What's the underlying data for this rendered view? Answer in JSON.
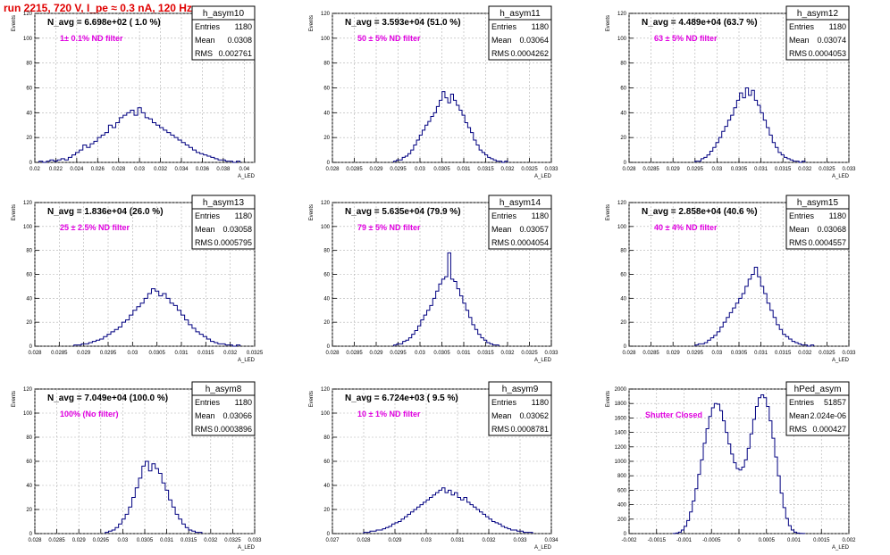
{
  "page_title": "run 2215,   720 V, I_pe ≈ 0.3 nA, 120 Hz",
  "common": {
    "yaxis_label": "Events",
    "xaxis_label": "A_LED"
  },
  "colors": {
    "histogram": "#000080",
    "annotation": "#e000e0",
    "title": "#e00000",
    "grid": "#b0b0b0"
  },
  "chart_data": [
    {
      "type": "histogram",
      "name": "h_asym10",
      "stats": {
        "entries": "1180",
        "mean": "0.0308",
        "rms": "0.002761"
      },
      "navg": "N_avg = 6.698e+02 ( 1.0 %)",
      "note": "1± 0.1% ND filter",
      "xlim": [
        0.02,
        0.041
      ],
      "ylim": [
        0,
        120
      ],
      "xticks": [
        "0.02",
        "0.022",
        "0.024",
        "0.026",
        "0.028",
        "0.03",
        "0.032",
        "0.034",
        "0.036",
        "0.038",
        "0.04"
      ],
      "yticks": [
        "0",
        "20",
        "40",
        "60",
        "80",
        "100",
        "120"
      ],
      "bins": {
        "lo": 0.0204,
        "hi": 0.0396,
        "counts": [
          1,
          0,
          1,
          2,
          1,
          2,
          3,
          2,
          4,
          6,
          8,
          10,
          14,
          12,
          15,
          17,
          20,
          22,
          24,
          30,
          28,
          32,
          36,
          38,
          40,
          42,
          38,
          44,
          40,
          36,
          35,
          32,
          30,
          28,
          26,
          24,
          22,
          20,
          18,
          16,
          14,
          12,
          10,
          8,
          7,
          6,
          5,
          4,
          3,
          2,
          2,
          1,
          1,
          0,
          1
        ]
      }
    },
    {
      "type": "histogram",
      "name": "h_asym11",
      "stats": {
        "entries": "1180",
        "mean": "0.03064",
        "rms": "0.0004262"
      },
      "navg": "N_avg = 3.593e+04 (51.0 %)",
      "note": "50 ± 5% ND filter",
      "xlim": [
        0.028,
        0.033
      ],
      "ylim": [
        0,
        120
      ],
      "xticks": [
        "0.028",
        "0.0285",
        "0.029",
        "0.0295",
        "0.03",
        "0.0305",
        "0.031",
        "0.0315",
        "0.032",
        "0.0325",
        "0.033"
      ],
      "yticks": [
        "0",
        "20",
        "40",
        "60",
        "80",
        "100",
        "120"
      ],
      "bins": {
        "lo": 0.0294,
        "hi": 0.032,
        "counts": [
          1,
          2,
          2,
          4,
          5,
          7,
          10,
          14,
          18,
          22,
          26,
          30,
          33,
          37,
          40,
          45,
          50,
          57,
          52,
          48,
          55,
          50,
          46,
          42,
          38,
          32,
          28,
          24,
          18,
          14,
          10,
          8,
          6,
          4,
          3,
          2,
          1,
          1,
          0,
          1
        ]
      }
    },
    {
      "type": "histogram",
      "name": "h_asym12",
      "stats": {
        "entries": "1180",
        "mean": "0.03074",
        "rms": "0.0004053"
      },
      "navg": "N_avg = 4.489e+04 (63.7 %)",
      "note": "63 ± 5% ND filter",
      "xlim": [
        0.028,
        0.033
      ],
      "ylim": [
        0,
        120
      ],
      "xticks": [
        "0.028",
        "0.0285",
        "0.029",
        "0.0295",
        "0.03",
        "0.0305",
        "0.031",
        "0.0315",
        "0.032",
        "0.0325",
        "0.033"
      ],
      "yticks": [
        "0",
        "20",
        "40",
        "60",
        "80",
        "100",
        "120"
      ],
      "bins": {
        "lo": 0.0295,
        "hi": 0.032,
        "counts": [
          1,
          1,
          3,
          4,
          6,
          9,
          12,
          16,
          20,
          25,
          29,
          34,
          38,
          44,
          50,
          56,
          52,
          60,
          54,
          58,
          50,
          46,
          40,
          34,
          28,
          22,
          16,
          12,
          8,
          6,
          4,
          3,
          2,
          1,
          1,
          0,
          1
        ]
      }
    },
    {
      "type": "histogram",
      "name": "h_asym13",
      "stats": {
        "entries": "1180",
        "mean": "0.03058",
        "rms": "0.0005795"
      },
      "navg": "N_avg = 1.836e+04 (26.0 %)",
      "note": "25 ± 2.5% ND filter",
      "xlim": [
        0.028,
        0.0325
      ],
      "ylim": [
        0,
        120
      ],
      "xticks": [
        "0.028",
        "0.0285",
        "0.029",
        "0.0295",
        "0.03",
        "0.0305",
        "0.031",
        "0.0315",
        "0.032",
        "0.0325"
      ],
      "yticks": [
        "0",
        "20",
        "40",
        "60",
        "80",
        "100",
        "120"
      ],
      "bins": {
        "lo": 0.0288,
        "hi": 0.0322,
        "counts": [
          1,
          1,
          2,
          2,
          3,
          4,
          5,
          6,
          8,
          10,
          12,
          14,
          16,
          20,
          22,
          26,
          30,
          33,
          36,
          40,
          44,
          48,
          46,
          42,
          44,
          40,
          36,
          34,
          30,
          26,
          22,
          18,
          15,
          12,
          10,
          8,
          6,
          4,
          3,
          2,
          2,
          1,
          1,
          0,
          1
        ]
      }
    },
    {
      "type": "histogram",
      "name": "h_asym14",
      "stats": {
        "entries": "1180",
        "mean": "0.03057",
        "rms": "0.0004054"
      },
      "navg": "N_avg = 5.635e+04 (79.9 %)",
      "note": "79 ± 5% ND filter",
      "xlim": [
        0.028,
        0.033
      ],
      "ylim": [
        0,
        120
      ],
      "xticks": [
        "0.028",
        "0.0285",
        "0.029",
        "0.0295",
        "0.03",
        "0.0305",
        "0.031",
        "0.0315",
        "0.032",
        "0.0325",
        "0.033"
      ],
      "yticks": [
        "0",
        "20",
        "40",
        "60",
        "80",
        "100",
        "120"
      ],
      "bins": {
        "lo": 0.0294,
        "hi": 0.0318,
        "counts": [
          1,
          2,
          2,
          4,
          5,
          7,
          10,
          13,
          17,
          22,
          26,
          30,
          34,
          40,
          46,
          52,
          56,
          58,
          78,
          56,
          54,
          48,
          42,
          36,
          30,
          24,
          18,
          14,
          10,
          7,
          5,
          3,
          2,
          1,
          1
        ]
      }
    },
    {
      "type": "histogram",
      "name": "h_asym15",
      "stats": {
        "entries": "1180",
        "mean": "0.03068",
        "rms": "0.0004557"
      },
      "navg": "N_avg = 2.858e+04 (40.6 %)",
      "note": "40 ± 4% ND filter",
      "xlim": [
        0.028,
        0.033
      ],
      "ylim": [
        0,
        120
      ],
      "xticks": [
        "0.028",
        "0.0285",
        "0.029",
        "0.0295",
        "0.03",
        "0.0305",
        "0.031",
        "0.0315",
        "0.032",
        "0.0325",
        "0.033"
      ],
      "yticks": [
        "0",
        "20",
        "40",
        "60",
        "80",
        "100",
        "120"
      ],
      "bins": {
        "lo": 0.0295,
        "hi": 0.0322,
        "counts": [
          1,
          2,
          2,
          3,
          5,
          7,
          9,
          12,
          16,
          20,
          24,
          28,
          32,
          36,
          40,
          44,
          50,
          56,
          60,
          66,
          58,
          50,
          44,
          36,
          30,
          24,
          18,
          14,
          10,
          8,
          6,
          4,
          3,
          2,
          1,
          1,
          0,
          1
        ]
      }
    },
    {
      "type": "histogram",
      "name": "h_asym8",
      "stats": {
        "entries": "1180",
        "mean": "0.03066",
        "rms": "0.0003896"
      },
      "navg": "N_avg = 7.049e+04 (100.0 %)",
      "note": "100% (No filter)",
      "xlim": [
        0.028,
        0.033
      ],
      "ylim": [
        0,
        120
      ],
      "xticks": [
        "0.028",
        "0.0285",
        "0.029",
        "0.0295",
        "0.03",
        "0.0305",
        "0.031",
        "0.0315",
        "0.032",
        "0.0325",
        "0.033"
      ],
      "yticks": [
        "0",
        "20",
        "40",
        "60",
        "80",
        "100",
        "120"
      ],
      "bins": {
        "lo": 0.0296,
        "hi": 0.0318,
        "counts": [
          1,
          2,
          3,
          5,
          8,
          12,
          16,
          22,
          30,
          38,
          46,
          56,
          60,
          52,
          58,
          54,
          50,
          42,
          36,
          28,
          22,
          16,
          12,
          8,
          5,
          3,
          2,
          1,
          1
        ]
      }
    },
    {
      "type": "histogram",
      "name": "h_asym9",
      "stats": {
        "entries": "1180",
        "mean": "0.03062",
        "rms": "0.0008781"
      },
      "navg": "N_avg = 6.724e+03 ( 9.5 %)",
      "note": "10 ± 1% ND filter",
      "xlim": [
        0.027,
        0.034
      ],
      "ylim": [
        0,
        120
      ],
      "xticks": [
        "0.027",
        "0.028",
        "0.029",
        "0.03",
        "0.031",
        "0.032",
        "0.033",
        "0.034"
      ],
      "yticks": [
        "0",
        "20",
        "40",
        "60",
        "80",
        "100",
        "120"
      ],
      "bins": {
        "lo": 0.028,
        "hi": 0.0334,
        "counts": [
          1,
          1,
          2,
          2,
          3,
          3,
          4,
          5,
          6,
          8,
          9,
          10,
          12,
          14,
          16,
          18,
          20,
          22,
          24,
          26,
          28,
          30,
          32,
          34,
          36,
          38,
          34,
          36,
          32,
          34,
          30,
          28,
          30,
          26,
          24,
          22,
          20,
          18,
          16,
          14,
          12,
          10,
          9,
          8,
          6,
          5,
          4,
          3,
          3,
          2,
          2,
          1,
          1,
          1
        ]
      }
    },
    {
      "type": "histogram",
      "name": "hPed_asym",
      "stats": {
        "entries": "51857",
        "mean": "2.024e-06",
        "rms": "0.000427"
      },
      "navg": "",
      "note": "Shutter Closed",
      "xlim": [
        -0.002,
        0.002
      ],
      "ylim": [
        0,
        2000
      ],
      "xticks": [
        "-0.002",
        "-0.0015",
        "-0.001",
        "-0.0005",
        "0",
        "0.0005",
        "0.001",
        "0.0015",
        "0.002"
      ],
      "yticks": [
        "0",
        "200",
        "400",
        "600",
        "800",
        "1000",
        "1200",
        "1400",
        "1600",
        "1800",
        "2000"
      ],
      "bins": {
        "lo": -0.0012,
        "hi": 0.0012,
        "counts": [
          2,
          8,
          20,
          50,
          100,
          180,
          300,
          450,
          620,
          820,
          1020,
          1250,
          1450,
          1620,
          1740,
          1800,
          1790,
          1700,
          1560,
          1400,
          1240,
          1100,
          980,
          900,
          880,
          920,
          1020,
          1180,
          1380,
          1580,
          1760,
          1880,
          1920,
          1880,
          1760,
          1560,
          1320,
          1060,
          800,
          560,
          360,
          210,
          110,
          50,
          20,
          8,
          3,
          1
        ]
      }
    }
  ]
}
